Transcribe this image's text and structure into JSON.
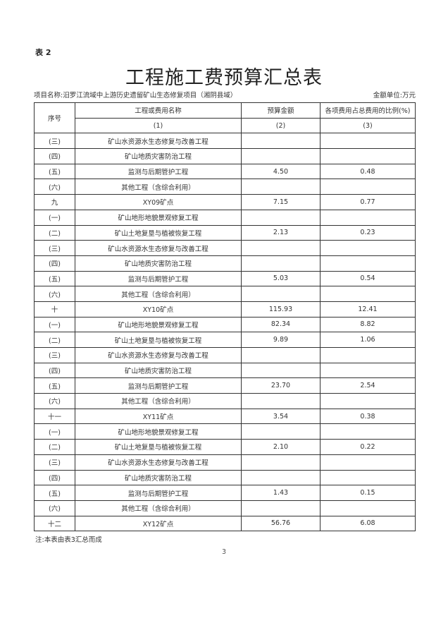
{
  "table_label": "表 2",
  "title": "工程施工费预算汇总表",
  "project_name": "项目名称:汨罗江流域中上游历史遗留矿山生态修复项目（湘阴县域）",
  "unit": "金额单位:万元",
  "headers": {
    "seq": "序号",
    "name": "工程或费用名称",
    "amount": "预算金额",
    "ratio": "各项费用占总费用的比例(%)",
    "n1": "(1)",
    "n2": "(2)",
    "n3": "(3)"
  },
  "rows": [
    [
      "(三)",
      "矿山水资源水生态修复与改善工程",
      "",
      ""
    ],
    [
      "(四)",
      "矿山地质灾害防治工程",
      "",
      ""
    ],
    [
      "(五)",
      "监测与后期管护工程",
      "4.50",
      "0.48"
    ],
    [
      "(六)",
      "其他工程（含综合利用）",
      "",
      ""
    ],
    [
      "九",
      "XY09矿点",
      "7.15",
      "0.77"
    ],
    [
      "(一)",
      "矿山地形地貌景观修复工程",
      "",
      ""
    ],
    [
      "(二)",
      "矿山土地复垦与植被恢复工程",
      "2.13",
      "0.23"
    ],
    [
      "(三)",
      "矿山水资源水生态修复与改善工程",
      "",
      ""
    ],
    [
      "(四)",
      "矿山地质灾害防治工程",
      "",
      ""
    ],
    [
      "(五)",
      "监测与后期管护工程",
      "5.03",
      "0.54"
    ],
    [
      "(六)",
      "其他工程（含综合利用）",
      "",
      ""
    ],
    [
      "十",
      "XY10矿点",
      "115.93",
      "12.41"
    ],
    [
      "(一)",
      "矿山地形地貌景观修复工程",
      "82.34",
      "8.82"
    ],
    [
      "(二)",
      "矿山土地复垦与植被恢复工程",
      "9.89",
      "1.06"
    ],
    [
      "(三)",
      "矿山水资源水生态修复与改善工程",
      "",
      ""
    ],
    [
      "(四)",
      "矿山地质灾害防治工程",
      "",
      ""
    ],
    [
      "(五)",
      "监测与后期管护工程",
      "23.70",
      "2.54"
    ],
    [
      "(六)",
      "其他工程（含综合利用）",
      "",
      ""
    ],
    [
      "十一",
      "XY11矿点",
      "3.54",
      "0.38"
    ],
    [
      "(一)",
      "矿山地形地貌景观修复工程",
      "",
      ""
    ],
    [
      "(二)",
      "矿山土地复垦与植被恢复工程",
      "2.10",
      "0.22"
    ],
    [
      "(三)",
      "矿山水资源水生态修复与改善工程",
      "",
      ""
    ],
    [
      "(四)",
      "矿山地质灾害防治工程",
      "",
      ""
    ],
    [
      "(五)",
      "监测与后期管护工程",
      "1.43",
      "0.15"
    ],
    [
      "(六)",
      "其他工程（含综合利用）",
      "",
      ""
    ],
    [
      "十二",
      "XY12矿点",
      "56.76",
      "6.08"
    ]
  ],
  "note": "注:本表由表3汇总而成",
  "page_number": "3"
}
